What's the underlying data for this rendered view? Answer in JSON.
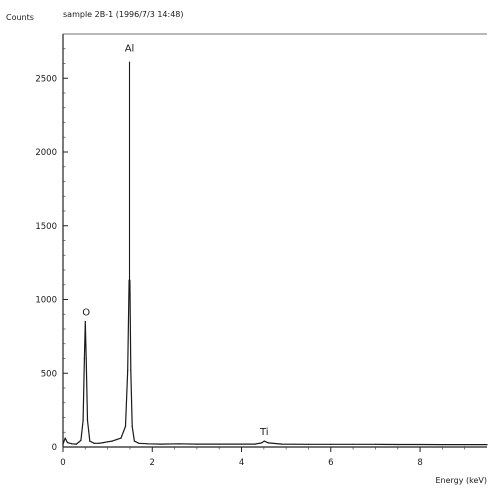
{
  "chart_data": {
    "type": "line",
    "header_left": "Counts",
    "header_title": "sample 2B-1 (1996/7/3 14:48)",
    "xlabel": "Energy (keV)",
    "ylabel": "",
    "xlim": [
      0,
      9.5
    ],
    "ylim": [
      0,
      2800
    ],
    "x_ticks": [
      0,
      2,
      4,
      6,
      8
    ],
    "x_tick_labels": [
      "0",
      "2",
      "4",
      "6",
      "8"
    ],
    "y_ticks": [
      0,
      500,
      1000,
      1500,
      2000,
      2500
    ],
    "y_tick_labels": [
      "0",
      "500",
      "1000",
      "1500",
      "2000",
      "2500"
    ],
    "grid": false,
    "legend": "none",
    "series": [
      {
        "x": [
          0.0,
          0.05,
          0.1,
          0.2,
          0.3,
          0.4,
          0.45,
          0.48,
          0.5,
          0.52,
          0.55,
          0.6,
          0.7,
          0.8,
          0.9,
          1.0,
          1.1,
          1.2,
          1.3,
          1.4,
          1.45,
          1.48,
          1.5,
          1.52,
          1.55,
          1.6,
          1.7,
          1.9,
          2.2,
          2.6,
          3.0,
          3.5,
          4.0,
          4.3,
          4.45,
          4.51,
          4.6,
          4.9,
          5.5,
          6.0,
          6.5,
          7.0,
          7.5,
          8.0,
          8.5,
          9.0,
          9.5
        ],
        "y": [
          20,
          60,
          30,
          22,
          20,
          45,
          180,
          600,
          850,
          600,
          180,
          40,
          25,
          25,
          30,
          35,
          40,
          50,
          60,
          140,
          520,
          1130,
          1130,
          520,
          140,
          40,
          25,
          22,
          20,
          22,
          20,
          20,
          20,
          20,
          28,
          40,
          28,
          20,
          18,
          18,
          18,
          18,
          17,
          17,
          16,
          16,
          16
        ]
      }
    ],
    "annotations": [
      {
        "text": "O",
        "x": 0.52,
        "y": 850
      },
      {
        "text": "Al",
        "x": 1.49,
        "y": 2640
      },
      {
        "text": "Ti",
        "x": 4.51,
        "y": 40
      }
    ]
  }
}
